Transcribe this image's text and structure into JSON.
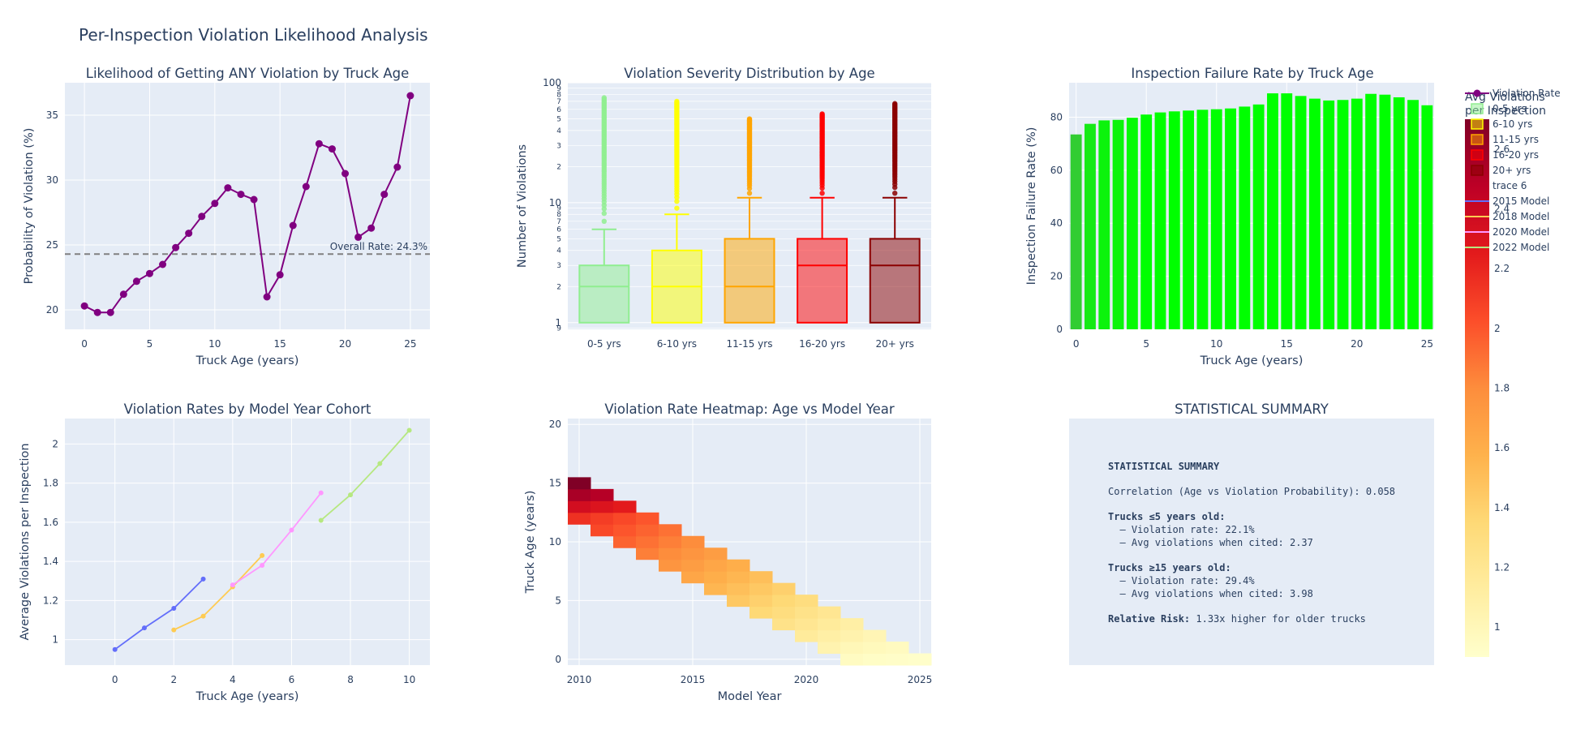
{
  "figure": {
    "title": "Per-Inspection Violation Likelihood Analysis"
  },
  "colors": {
    "plot_bg": "#E5ECF6",
    "grid": "#ffffff",
    "text": "#2a3f5f",
    "purple": "#800080",
    "cohort_2015": "#636EFA",
    "cohort_2018": "#FECB52",
    "cohort_2020": "#FF97FF",
    "cohort_2022": "#B6E880",
    "age_groups": [
      "#90EE90",
      "#FFFF00",
      "#FFA500",
      "#FF0000",
      "#8B0000"
    ]
  },
  "legend": {
    "items": [
      "Violation Rate",
      "0-5 yrs",
      "6-10 yrs",
      "11-15 yrs",
      "16-20 yrs",
      "20+ yrs",
      "trace 6",
      "2015 Model",
      "2018 Model",
      "2020 Model",
      "2022 Model"
    ]
  },
  "colorbar": {
    "title_line1": "Avg Violations",
    "title_line2": "per Inspection",
    "min": 0.9,
    "max": 2.7,
    "ticks": [
      1,
      1.2,
      1.4,
      1.6,
      1.8,
      2,
      2.2,
      2.4,
      2.6
    ],
    "tick_labels": [
      "1",
      "1.2",
      "1.4",
      "1.6",
      "1.8",
      "2",
      "2.2",
      "2.4",
      "2.6"
    ]
  },
  "chart_data": [
    {
      "type": "line",
      "title": "Likelihood of Getting ANY Violation by Truck Age",
      "xlabel": "Truck Age (years)",
      "ylabel": "Probability of Violation (%)",
      "xlim": [
        -1.5,
        26.5
      ],
      "ylim": [
        18.5,
        37.5
      ],
      "xticks": [
        0,
        5,
        10,
        15,
        20,
        25
      ],
      "xtick_labels": [
        "0",
        "5",
        "10",
        "15",
        "20",
        "25"
      ],
      "yticks": [
        20,
        25,
        30,
        35
      ],
      "ytick_labels": [
        "20",
        "25",
        "30",
        "35"
      ],
      "x": [
        0,
        1,
        2,
        3,
        4,
        5,
        6,
        7,
        8,
        9,
        10,
        11,
        12,
        13,
        14,
        15,
        16,
        17,
        18,
        19,
        20,
        21,
        22,
        23,
        24,
        25
      ],
      "y": [
        20.3,
        19.8,
        19.8,
        21.2,
        22.2,
        22.8,
        23.5,
        24.8,
        25.9,
        27.2,
        28.2,
        29.4,
        28.9,
        28.5,
        21.0,
        22.7,
        26.5,
        29.5,
        32.8,
        32.4,
        30.5,
        25.6,
        26.3,
        28.9,
        31.0,
        36.5
      ],
      "reference_line": {
        "y": 24.3,
        "label": "Overall Rate: 24.3%"
      }
    },
    {
      "type": "box",
      "title": "Violation Severity Distribution by Age",
      "ylabel": "Number of Violations",
      "yscale": "log",
      "ylim": [
        0.88,
        100
      ],
      "categories": [
        "0-5 yrs",
        "6-10 yrs",
        "11-15 yrs",
        "16-20 yrs",
        "20+ yrs"
      ],
      "major_ticks": [
        1,
        10,
        100
      ],
      "major_tick_labels": [
        "1",
        "10",
        "100"
      ],
      "minor_ticks": [
        2,
        3,
        4,
        5,
        6,
        7,
        8,
        9,
        20,
        30,
        40,
        50,
        60,
        70,
        80,
        90
      ],
      "minor_tick_labels": [
        "2",
        "3",
        "4",
        "5",
        "6",
        "7",
        "8",
        "9",
        "2",
        "3",
        "4",
        "5",
        "6",
        "7",
        "8",
        "9"
      ],
      "sub_ticks": [
        0.9
      ],
      "sub_tick_labels": [
        "9"
      ],
      "boxes": [
        {
          "q1": 1,
          "median": 2,
          "q3": 3,
          "lower": 1,
          "upper": 6,
          "outlier_min": 7,
          "outlier_max": 75
        },
        {
          "q1": 1,
          "median": 2,
          "q3": 4,
          "lower": 1,
          "upper": 8,
          "outlier_min": 9,
          "outlier_max": 70
        },
        {
          "q1": 1,
          "median": 2,
          "q3": 5,
          "lower": 1,
          "upper": 11,
          "outlier_min": 12,
          "outlier_max": 50
        },
        {
          "q1": 1,
          "median": 3,
          "q3": 5,
          "lower": 1,
          "upper": 11,
          "outlier_min": 12,
          "outlier_max": 55
        },
        {
          "q1": 1,
          "median": 3,
          "q3": 5,
          "lower": 1,
          "upper": 11,
          "outlier_min": 12,
          "outlier_max": 67
        }
      ]
    },
    {
      "type": "bar",
      "title": "Inspection Failure Rate by Truck Age",
      "xlabel": "Truck Age (years)",
      "ylabel": "Inspection Failure Rate (%)",
      "xlim": [
        -0.5,
        25.5
      ],
      "ylim": [
        0,
        93
      ],
      "xticks": [
        0,
        5,
        10,
        15,
        20,
        25
      ],
      "xtick_labels": [
        "0",
        "5",
        "10",
        "15",
        "20",
        "25"
      ],
      "yticks": [
        0,
        20,
        40,
        60,
        80
      ],
      "ytick_labels": [
        "0",
        "20",
        "40",
        "60",
        "80"
      ],
      "x": [
        0,
        1,
        2,
        3,
        4,
        5,
        6,
        7,
        8,
        9,
        10,
        11,
        12,
        13,
        14,
        15,
        16,
        17,
        18,
        19,
        20,
        21,
        22,
        23,
        24,
        25
      ],
      "values": [
        73.5,
        77.5,
        78.8,
        79.0,
        79.8,
        81.0,
        81.8,
        82.2,
        82.5,
        82.8,
        83.0,
        83.3,
        84.0,
        84.8,
        89.0,
        89.0,
        88.0,
        87.0,
        86.3,
        86.5,
        87.0,
        88.8,
        88.5,
        87.5,
        86.5,
        84.5
      ],
      "color_scale": [
        "#32CD32",
        "#00FF00"
      ]
    },
    {
      "type": "line",
      "title": "Violation Rates by Model Year Cohort",
      "xlabel": "Truck Age (years)",
      "ylabel": "Average Violations per Inspection",
      "xlim": [
        -1.7,
        10.7
      ],
      "ylim": [
        0.87,
        2.13
      ],
      "xticks": [
        0,
        2,
        4,
        6,
        8,
        10
      ],
      "xtick_labels": [
        "0",
        "2",
        "4",
        "6",
        "8",
        "10"
      ],
      "yticks": [
        1,
        1.2,
        1.4,
        1.6,
        1.8,
        2
      ],
      "ytick_labels": [
        "1",
        "1.2",
        "1.4",
        "1.6",
        "1.8",
        "2"
      ],
      "series": [
        {
          "name": "2015 Model",
          "x": [
            0,
            1,
            2,
            3
          ],
          "y": [
            0.95,
            1.06,
            1.16,
            1.31
          ]
        },
        {
          "name": "2018 Model",
          "x": [
            2,
            3,
            4,
            5
          ],
          "y": [
            1.05,
            1.12,
            1.27,
            1.43
          ]
        },
        {
          "name": "2020 Model",
          "x": [
            4,
            5,
            6,
            7
          ],
          "y": [
            1.28,
            1.38,
            1.56,
            1.75
          ]
        },
        {
          "name": "2022 Model",
          "x": [
            7,
            8,
            9,
            10
          ],
          "y": [
            1.61,
            1.74,
            1.9,
            2.07
          ]
        }
      ]
    },
    {
      "type": "heatmap",
      "title": "Violation Rate Heatmap: Age vs Model Year",
      "xlabel": "Model Year",
      "ylabel": "Truck Age (years)",
      "xlim": [
        2009.5,
        2025.5
      ],
      "ylim": [
        -0.5,
        20.5
      ],
      "xticks": [
        2010,
        2015,
        2020,
        2025
      ],
      "xtick_labels": [
        "2010",
        "2015",
        "2020",
        "2025"
      ],
      "yticks": [
        0,
        5,
        10,
        15
      ],
      "ytick_labels": [
        "0",
        "5",
        "10",
        "15"
      ],
      "model_years_start": 2010,
      "rows_by_age_start": 0,
      "cells": [
        [
          2022,
          0,
          0.95
        ],
        [
          2023,
          0,
          0.93
        ],
        [
          2024,
          0,
          0.92
        ],
        [
          2025,
          0,
          0.91
        ],
        [
          2021,
          1,
          1.05
        ],
        [
          2022,
          1,
          1.0
        ],
        [
          2023,
          1,
          0.98
        ],
        [
          2024,
          1,
          0.96
        ],
        [
          2020,
          2,
          1.15
        ],
        [
          2021,
          2,
          1.1
        ],
        [
          2022,
          2,
          1.06
        ],
        [
          2023,
          2,
          1.02
        ],
        [
          2019,
          3,
          1.25
        ],
        [
          2020,
          3,
          1.2
        ],
        [
          2021,
          3,
          1.15
        ],
        [
          2022,
          3,
          1.1
        ],
        [
          2018,
          4,
          1.35
        ],
        [
          2019,
          4,
          1.3
        ],
        [
          2020,
          4,
          1.25
        ],
        [
          2021,
          4,
          1.2
        ],
        [
          2017,
          5,
          1.45
        ],
        [
          2018,
          5,
          1.4
        ],
        [
          2019,
          5,
          1.35
        ],
        [
          2020,
          5,
          1.3
        ],
        [
          2016,
          6,
          1.55
        ],
        [
          2017,
          6,
          1.5
        ],
        [
          2018,
          6,
          1.45
        ],
        [
          2019,
          6,
          1.4
        ],
        [
          2015,
          7,
          1.65
        ],
        [
          2016,
          7,
          1.6
        ],
        [
          2017,
          7,
          1.55
        ],
        [
          2018,
          7,
          1.5
        ],
        [
          2014,
          8,
          1.75
        ],
        [
          2015,
          8,
          1.7
        ],
        [
          2016,
          8,
          1.65
        ],
        [
          2017,
          8,
          1.6
        ],
        [
          2013,
          9,
          1.85
        ],
        [
          2014,
          9,
          1.8
        ],
        [
          2015,
          9,
          1.75
        ],
        [
          2016,
          9,
          1.7
        ],
        [
          2012,
          10,
          1.95
        ],
        [
          2013,
          10,
          1.9
        ],
        [
          2014,
          10,
          1.85
        ],
        [
          2015,
          10,
          1.8
        ],
        [
          2011,
          11,
          2.05
        ],
        [
          2012,
          11,
          2.0
        ],
        [
          2013,
          11,
          1.95
        ],
        [
          2014,
          11,
          1.9
        ],
        [
          2010,
          12,
          2.15
        ],
        [
          2011,
          12,
          2.1
        ],
        [
          2012,
          12,
          2.05
        ],
        [
          2013,
          12,
          2.0
        ],
        [
          2010,
          13,
          2.35
        ],
        [
          2011,
          13,
          2.3
        ],
        [
          2012,
          13,
          2.25
        ],
        [
          2010,
          14,
          2.55
        ],
        [
          2011,
          14,
          2.5
        ],
        [
          2010,
          15,
          2.7
        ]
      ]
    }
  ],
  "summary": {
    "title": "STATISTICAL SUMMARY",
    "heading": "STATISTICAL SUMMARY",
    "correlation_label": "Correlation (Age vs Violation Probability): ",
    "correlation_value": "0.058",
    "young_heading": "Trucks ≤5 years old:",
    "young_rate": "  – Violation rate: 22.1%",
    "young_avg": "  – Avg violations when cited: 2.37",
    "old_heading": "Trucks ≥15 years old:",
    "old_rate": "  – Violation rate: 29.4%",
    "old_avg": "  – Avg violations when cited: 3.98",
    "risk_label": "Relative Risk:",
    "risk_value": " 1.33x higher for older trucks"
  }
}
